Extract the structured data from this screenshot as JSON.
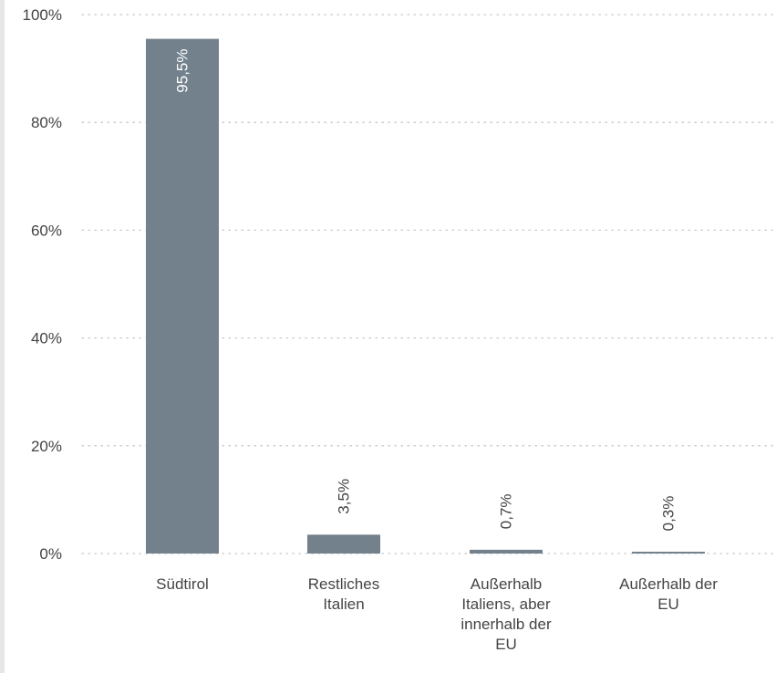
{
  "chart_data": {
    "type": "bar",
    "title": "",
    "xlabel": "",
    "ylabel": "",
    "categories": [
      [
        "Südtirol"
      ],
      [
        "Restliches",
        "Italien"
      ],
      [
        "Außerhalb",
        "Italiens, aber",
        "innerhalb der",
        "EU"
      ],
      [
        "Außerhalb der",
        "EU"
      ]
    ],
    "values": [
      95.5,
      3.5,
      0.7,
      0.3
    ],
    "value_labels": [
      "95,5%",
      "3,5%",
      "0,7%",
      "0,3%"
    ],
    "yticks": [
      0,
      20,
      40,
      60,
      80,
      100
    ],
    "ytick_labels": [
      "0%",
      "20%",
      "40%",
      "60%",
      "80%",
      "100%"
    ],
    "ylim": [
      0,
      100
    ],
    "grid": true,
    "legend": "none",
    "colors": {
      "bar": "#72818c",
      "grid": "#c8c8c8",
      "text": "#444444",
      "label_inside": "#ffffff"
    }
  }
}
